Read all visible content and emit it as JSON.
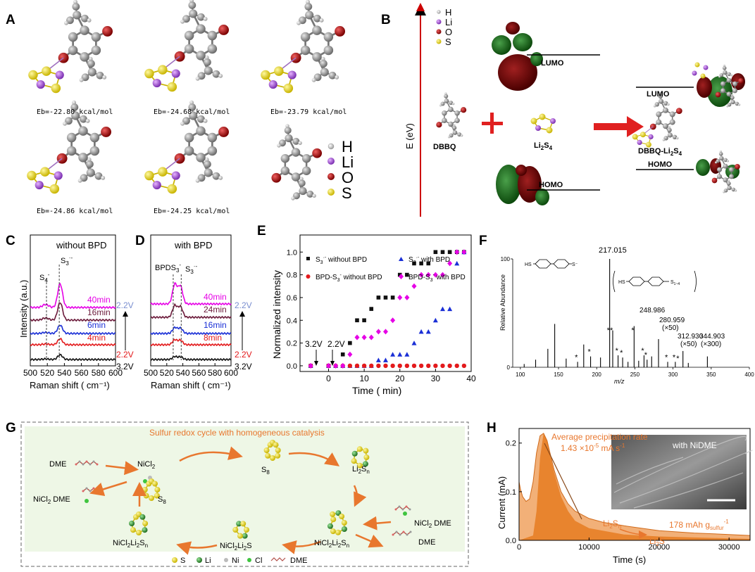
{
  "panel_labels": {
    "A": "A",
    "B": "B",
    "C": "C",
    "D": "D",
    "E": "E",
    "F": "F",
    "G": "G",
    "H": "H"
  },
  "panelA": {
    "energies": [
      "Eb=-22.80 kcal/mol",
      "Eb=-24.68 kcal/mol",
      "Eb=-23.79 kcal/mol",
      "Eb=-24.86 kcal/mol",
      "Eb=-24.25 kcal/mol"
    ],
    "legend": [
      "H",
      "Li",
      "O",
      "S"
    ]
  },
  "panelB": {
    "legend": [
      "H",
      "Li",
      "O",
      "S"
    ],
    "axis_label": "E (eV)",
    "dbbq": "DBBQ",
    "li2s4": {
      "base": "Li",
      "sub1": "2",
      "mid": "S",
      "sub2": "4"
    },
    "complex": {
      "base": "DBBQ-Li",
      "sub1": "2",
      "mid": "S",
      "sub2": "4"
    },
    "lumo": "LUMO",
    "homo": "HOMO",
    "lumo2": "LUMO",
    "homo2": "HOMO"
  },
  "panelC": {
    "title": "without BPD",
    "peak_s4": {
      "base": "S",
      "sub": "4",
      "sup": "-"
    },
    "peak_s3": {
      "base": "S",
      "sub": "3",
      "sup": "·-"
    },
    "times": [
      "40min",
      "16min",
      "6min",
      "4min"
    ],
    "v_top": "2.2V",
    "v_mid": "2.2V",
    "v_bot": "3.2V",
    "ylabel": "Intensity  (a.u.)",
    "xlabel": "Raman shift  ( cm⁻¹)",
    "xticks": [
      "500",
      "520",
      "540",
      "560",
      "580",
      "600"
    ]
  },
  "panelD": {
    "title": "with BPD",
    "peak_bpds3": {
      "base": "BPDS",
      "sub": "3",
      "sup": "-"
    },
    "peak_s3": {
      "base": "S",
      "sub": "3",
      "sup": "·-"
    },
    "times": [
      "40min",
      "24min",
      "16min",
      "8min"
    ],
    "v_top": "2.2V",
    "v_mid": "2.2V",
    "v_bot": "3.2V",
    "xlabel": "Raman shift  ( cm⁻¹)",
    "xticks": [
      "500",
      "520",
      "540",
      "560",
      "580",
      "600"
    ]
  },
  "panelE": {
    "chart_data": {
      "type": "scatter",
      "title": "",
      "xlabel": "Time  ( min)",
      "ylabel": "Normalized intensity",
      "xlim": [
        -8,
        40
      ],
      "ylim": [
        -0.05,
        1.15
      ],
      "xticks": [
        0,
        10,
        20,
        30,
        40
      ],
      "yticks": [
        0.0,
        0.2,
        0.4,
        0.6,
        0.8,
        1.0
      ],
      "ytick_labels": [
        "0.0",
        "0.2",
        "0.4",
        "0.6",
        "0.8",
        "1.0"
      ],
      "series": [
        {
          "name": "S3·- without BPD",
          "color": "#111111",
          "marker": "square",
          "x": [
            -5,
            0,
            4,
            6,
            8,
            10,
            12,
            14,
            16,
            18,
            20,
            22,
            24,
            26,
            28,
            30,
            32,
            34,
            36,
            38
          ],
          "y": [
            0,
            0,
            0.1,
            0.2,
            0.4,
            0.4,
            0.5,
            0.6,
            0.6,
            0.6,
            0.8,
            0.8,
            0.9,
            0.9,
            0.9,
            1.0,
            1.0,
            1.0,
            1.0,
            1.0
          ]
        },
        {
          "name": "S3·- with BPD",
          "color": "#1a2fd6",
          "marker": "triangle",
          "x": [
            -5,
            0,
            2,
            4,
            6,
            8,
            10,
            12,
            14,
            16,
            18,
            20,
            22,
            24,
            26,
            28,
            30,
            32,
            34,
            36,
            38
          ],
          "y": [
            0,
            0,
            0,
            0,
            0,
            0,
            0,
            0,
            0.05,
            0.05,
            0.1,
            0.1,
            0.1,
            0.2,
            0.3,
            0.3,
            0.4,
            0.5,
            0.5,
            0.9,
            1.0
          ]
        },
        {
          "name": "BPD-S3- without BPD",
          "color": "#e31a1c",
          "marker": "circle",
          "x": [
            -5,
            0,
            2,
            4,
            6,
            8,
            10,
            12,
            14,
            16,
            18,
            20,
            22,
            24,
            26,
            28,
            30,
            32,
            34,
            36,
            38
          ],
          "y": [
            0,
            0,
            0,
            0,
            0,
            0,
            0,
            0,
            0,
            0,
            0,
            0,
            0,
            0,
            0,
            0,
            0,
            0,
            0,
            0,
            0
          ]
        },
        {
          "name": "BPD-S3- with BPD",
          "color": "#e600e6",
          "marker": "diamond",
          "x": [
            -5,
            0,
            2,
            4,
            6,
            8,
            10,
            12,
            14,
            16,
            18,
            20,
            22,
            24,
            26,
            28,
            30,
            32,
            34,
            36,
            38
          ],
          "y": [
            0,
            0,
            0,
            0,
            0.1,
            0.25,
            0.25,
            0.25,
            0.3,
            0.3,
            0.4,
            0.6,
            0.6,
            0.7,
            0.8,
            0.8,
            0.8,
            0.8,
            0.9,
            1.0,
            1.0
          ]
        }
      ],
      "annotations": [
        "3.2V",
        "2.2V"
      ]
    },
    "legend_labels": [
      {
        "base": "S",
        "sub": "3",
        "sup": "·-",
        "rest": " without BPD"
      },
      {
        "base": "S",
        "sub": "3",
        "sup": "·-",
        "rest": " with BPD"
      },
      {
        "base": "BPD-S",
        "sub": "3",
        "sup": "-",
        "rest": " without BPD"
      },
      {
        "base": "BPD-S",
        "sub": "3",
        "sup": "-",
        "rest": " with BPD"
      }
    ]
  },
  "panelF": {
    "chart_data": {
      "type": "bar",
      "xlabel": "m/z",
      "ylabel": "Relative Abundance",
      "xlim": [
        90,
        400
      ],
      "ylim": [
        0,
        100
      ],
      "xticks": [
        100,
        150,
        200,
        250,
        300,
        350,
        400
      ],
      "yticks": [
        0,
        100
      ],
      "peaks_x": [
        105,
        120,
        136,
        145,
        160,
        175,
        183,
        192,
        205,
        217,
        221,
        228,
        234,
        241,
        249,
        255,
        262,
        266,
        272,
        281,
        293,
        303,
        313,
        320,
        345
      ],
      "peaks_y": [
        3,
        7,
        17,
        40,
        8,
        5,
        21,
        10,
        9,
        100,
        34,
        11,
        9,
        5,
        38,
        6,
        11,
        7,
        10,
        26,
        5,
        5,
        15,
        4,
        10
      ],
      "labels": [
        "217.015",
        "248.986",
        "280.959\n(×50)",
        "312.930\n(×50)",
        "344.903\n(×300)"
      ],
      "starred": [
        175,
        192,
        217,
        221,
        228,
        234,
        249,
        262,
        266,
        293,
        303,
        308
      ]
    },
    "main_peak": "217.015",
    "peak_labels": [
      {
        "mz": "248.986",
        "mult": ""
      },
      {
        "mz": "280.959",
        "mult": "(×50)"
      },
      {
        "mz": "312.930",
        "mult": "(×50)"
      },
      {
        "mz": "344.903",
        "mult": "(×300)"
      }
    ],
    "star": "*",
    "hs": "HS",
    "s_minus": "S⁻",
    "s_chain": "S",
    "s_chain_sub": "1~4"
  },
  "panelG": {
    "title": "Sulfur redox cycle with homogeneous catalysis",
    "dme": "DME",
    "nicl2": {
      "base": "NiCl",
      "sub": "2"
    },
    "nicl2dme_left": {
      "base": "NiCl",
      "sub": "2",
      "rest": " DME"
    },
    "s8_a": {
      "base": "S",
      "sub": "8"
    },
    "s8_b": {
      "base": "S",
      "sub": "8"
    },
    "li2sn": {
      "base": "Li",
      "sub1": "2",
      "mid": "S",
      "sub2": "n"
    },
    "nicl2dme_right": {
      "base": "NiCl",
      "sub": "2",
      "rest": " DME"
    },
    "dme_right": "DME",
    "nicl2li2sn_r": {
      "base": "NiCl",
      "sub1": "2",
      "mid": "Li",
      "sub2": "2",
      "mid2": "S",
      "sub3": "n"
    },
    "nicl2li2s": {
      "base": "NiCl",
      "sub1": "2",
      "mid": "Li",
      "sub2": "2",
      "mid2": "S"
    },
    "nicl2li2sn_l": {
      "base": "NiCl",
      "sub1": "2",
      "mid": "Li",
      "sub2": "2",
      "mid2": "S",
      "sub3": "n"
    },
    "legend": [
      "S",
      "Li",
      "Ni",
      "Cl",
      "DME"
    ]
  },
  "panelH": {
    "chart_data": {
      "type": "area",
      "xlabel": "Time (s)",
      "ylabel": "Current (mA)",
      "xlim": [
        0,
        33000
      ],
      "ylim": [
        0,
        0.23
      ],
      "xticks": [
        0,
        10000,
        20000,
        30000
      ],
      "yticks": [
        0.0,
        0.1,
        0.2
      ],
      "ytick_labels": [
        "0.0",
        "0.1",
        "0.2"
      ],
      "x": [
        0,
        200,
        500,
        1000,
        1500,
        2000,
        2500,
        3000,
        3500,
        4000,
        4500,
        5000,
        6000,
        7000,
        8000,
        10000,
        12000,
        15000,
        20000,
        25000,
        30000,
        33000
      ],
      "y": [
        0.12,
        0.105,
        0.09,
        0.08,
        0.085,
        0.12,
        0.18,
        0.215,
        0.22,
        0.205,
        0.175,
        0.145,
        0.1,
        0.075,
        0.06,
        0.045,
        0.037,
        0.03,
        0.02,
        0.015,
        0.012,
        0.01
      ]
    },
    "rate_title": "Average precipitation rate",
    "rate_value": "1.43 ×10",
    "rate_exp": "-5",
    "rate_unit": " mA s",
    "rate_unit_exp": "-1",
    "inset_label": "with NiDME",
    "li2sn": {
      "base": "Li",
      "sub1": "2",
      "mid": "S",
      "sub2": "n"
    },
    "li2s": {
      "base": "Li",
      "sub1": "2",
      "mid": "S"
    },
    "capacity": "178 mAh g",
    "capacity_sub": "sulfur",
    "capacity_sup": "-1"
  }
}
